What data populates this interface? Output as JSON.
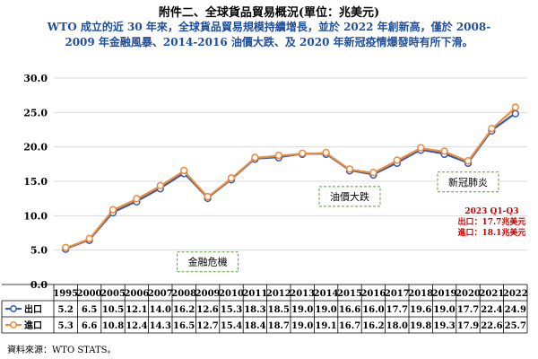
{
  "header": {
    "title": "附件二、全球貨品貿易概況(單位：兆美元)",
    "subtitle": "WTO 成立的近 30 年來，全球貨品貿易規模持續增長，並於 2022 年創新高，僅於 2008-2009 年金融風暴、2014-2016 油價大跌、及 2020 年新冠疫情爆發時有所下滑。"
  },
  "footer": {
    "source": "資料來源：WTO STATS。"
  },
  "colors": {
    "export": "#2f5bb7",
    "import": "#f08a34",
    "annotation": "#5aa02c",
    "note": "#cc0000"
  },
  "chart_data": {
    "type": "line",
    "categories": [
      "1995",
      "2000",
      "2005",
      "2006",
      "2007",
      "2008",
      "2009",
      "2010",
      "2011",
      "2012",
      "2013",
      "2014",
      "2015",
      "2016",
      "2017",
      "2018",
      "2019",
      "2020",
      "2021",
      "2022"
    ],
    "series": [
      {
        "name": "出口",
        "values": [
          5.2,
          6.5,
          10.5,
          12.1,
          14.0,
          16.2,
          12.6,
          15.3,
          18.3,
          18.5,
          19.0,
          19.0,
          16.6,
          16.0,
          17.7,
          19.6,
          19.0,
          17.7,
          22.4,
          24.9
        ]
      },
      {
        "name": "進口",
        "values": [
          5.3,
          6.6,
          10.8,
          12.4,
          14.3,
          16.5,
          12.7,
          15.4,
          18.4,
          18.7,
          19.0,
          19.1,
          16.7,
          16.2,
          18.0,
          19.8,
          19.3,
          17.9,
          22.6,
          25.7
        ]
      }
    ],
    "yticks": [
      "0.0",
      "5.0",
      "10.0",
      "15.0",
      "20.0",
      "25.0",
      "30.0"
    ],
    "ylim": [
      0,
      30
    ],
    "grid": true,
    "annotations": [
      {
        "text": "金融危機",
        "year": "2009",
        "value": 3.3
      },
      {
        "text": "油價大跌",
        "year": "2015",
        "value": 12.8
      },
      {
        "text": "新冠肺炎",
        "year": "2020",
        "value": 14.9
      }
    ],
    "note": [
      "2023 Q1-Q3",
      "出口：17.7兆美元",
      "進口：18.1兆美元"
    ],
    "note_anchor": {
      "year": "2021",
      "value": 10.3
    }
  }
}
